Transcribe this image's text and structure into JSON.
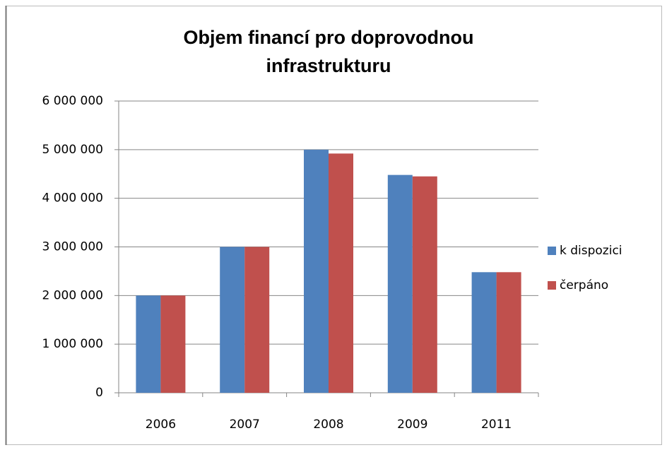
{
  "chart_data": {
    "type": "bar",
    "title": [
      "Objem financí pro doprovodnou",
      "infrastrukturu"
    ],
    "categories": [
      "2006",
      "2007",
      "2008",
      "2009",
      "2011"
    ],
    "series": [
      {
        "name": "k dispozici",
        "color": "#4f81bd",
        "values": [
          2000000,
          3000000,
          5000000,
          4480000,
          2480000
        ]
      },
      {
        "name": "čerpáno",
        "color": "#c0504d",
        "values": [
          2000000,
          3000000,
          4920000,
          4450000,
          2480000
        ]
      }
    ],
    "ylim": [
      0,
      6000000
    ],
    "yticks": [
      0,
      {
        "value": 1000000,
        "label": "1 000 000"
      },
      {
        "value": 2000000,
        "label": "2 000 000"
      },
      {
        "value": 3000000,
        "label": "3 000 000"
      },
      {
        "value": 4000000,
        "label": "4 000 000"
      },
      {
        "value": 5000000,
        "label": "5 000 000"
      },
      {
        "value": 6000000,
        "label": "6 000 000"
      }
    ],
    "grid": true,
    "legend": "right"
  }
}
